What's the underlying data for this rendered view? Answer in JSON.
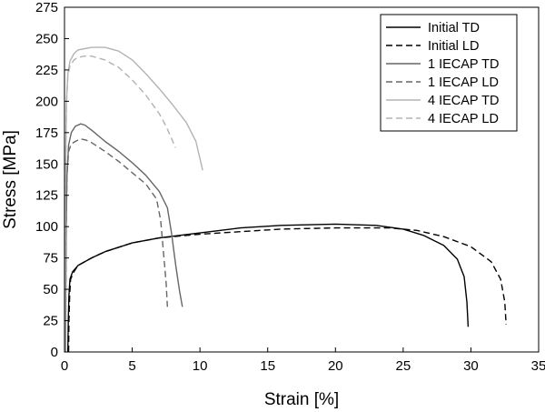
{
  "chart_data": {
    "type": "line",
    "title": "",
    "xlabel": "Strain [%]",
    "ylabel": "Stress [MPa]",
    "xlim": [
      0,
      35
    ],
    "ylim": [
      0,
      275
    ],
    "xticks": [
      0,
      5,
      10,
      15,
      20,
      25,
      30,
      35
    ],
    "yticks": [
      0,
      25,
      50,
      75,
      100,
      125,
      150,
      175,
      200,
      225,
      250,
      275
    ],
    "grid": false,
    "legend_position": "top-right",
    "series": [
      {
        "name": "Initial TD",
        "color": "#000000",
        "dash": "solid",
        "x": [
          0.25,
          0.28,
          0.33,
          0.4,
          0.6,
          1,
          2,
          3,
          5,
          7,
          10,
          13,
          16,
          20,
          23,
          25,
          26.5,
          28,
          29,
          29.5,
          29.7,
          29.8
        ],
        "y": [
          0,
          25,
          45,
          58,
          64,
          69,
          75,
          80,
          87,
          91,
          95,
          99,
          101,
          102,
          101,
          98,
          93,
          85,
          74,
          60,
          40,
          20
        ]
      },
      {
        "name": "Initial LD",
        "color": "#000000",
        "dash": "dashed",
        "x": [
          0.3,
          0.33,
          0.38,
          0.45,
          0.7,
          1,
          2,
          3,
          5,
          7,
          10,
          13,
          16,
          20,
          24,
          26,
          28,
          30,
          31.5,
          32.2,
          32.5,
          32.6
        ],
        "y": [
          0,
          25,
          45,
          58,
          64,
          69,
          75,
          80,
          87,
          91,
          94,
          96,
          98,
          99,
          99,
          97,
          92,
          84,
          72,
          58,
          40,
          22
        ]
      },
      {
        "name": "1 IECAP TD",
        "color": "#666666",
        "dash": "solid",
        "x": [
          0.08,
          0.1,
          0.13,
          0.18,
          0.3,
          0.5,
          0.8,
          1.2,
          1.5,
          2,
          3,
          4,
          5,
          6,
          7,
          7.6,
          7.9,
          8.2,
          8.5,
          8.7
        ],
        "y": [
          0,
          50,
          100,
          140,
          165,
          175,
          180,
          182,
          181,
          177,
          168,
          160,
          151,
          141,
          128,
          115,
          95,
          70,
          48,
          36
        ]
      },
      {
        "name": "1 IECAP LD",
        "color": "#666666",
        "dash": "dashed",
        "x": [
          0.08,
          0.1,
          0.13,
          0.18,
          0.3,
          0.5,
          0.8,
          1.2,
          1.6,
          2,
          3,
          4,
          5,
          6,
          6.8,
          7.1,
          7.3,
          7.5,
          7.6
        ],
        "y": [
          0,
          50,
          100,
          140,
          160,
          166,
          168,
          170,
          169,
          167,
          160,
          152,
          143,
          134,
          122,
          105,
          80,
          55,
          36
        ]
      },
      {
        "name": "4 IECAP TD",
        "color": "#b3b3b3",
        "dash": "solid",
        "x": [
          0.05,
          0.07,
          0.1,
          0.15,
          0.25,
          0.4,
          0.7,
          1,
          1.5,
          2,
          3,
          4,
          5,
          6,
          7,
          8,
          9,
          9.7,
          10.2
        ],
        "y": [
          0,
          80,
          160,
          200,
          222,
          232,
          238,
          241,
          242,
          243,
          243,
          240,
          233,
          222,
          210,
          197,
          183,
          168,
          145
        ]
      },
      {
        "name": "4 IECAP LD",
        "color": "#b3b3b3",
        "dash": "dashed",
        "x": [
          0.05,
          0.07,
          0.1,
          0.15,
          0.25,
          0.4,
          0.7,
          1,
          1.5,
          2,
          3,
          4,
          5,
          6,
          7,
          7.5,
          8.2
        ],
        "y": [
          0,
          80,
          160,
          198,
          220,
          228,
          233,
          235,
          236,
          236,
          233,
          227,
          217,
          205,
          190,
          180,
          163
        ]
      }
    ]
  }
}
